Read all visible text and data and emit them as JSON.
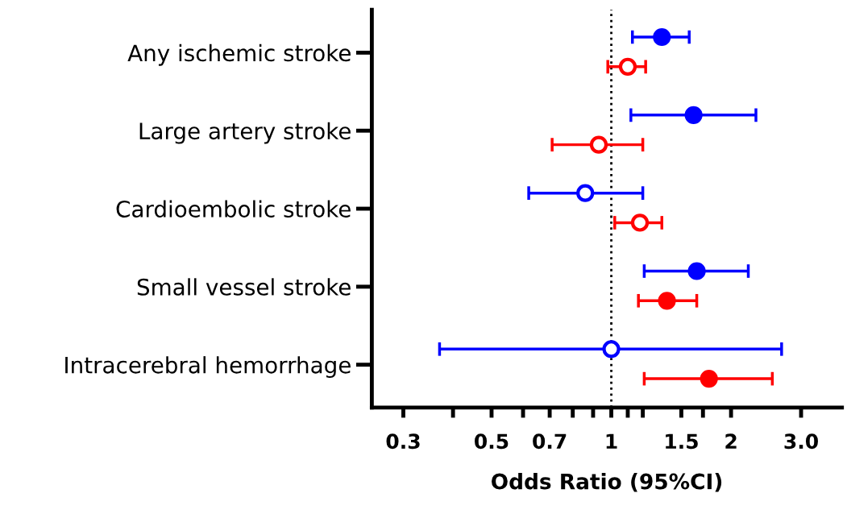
{
  "chart_data": {
    "type": "scatter",
    "orientation": "horizontal",
    "log": "x",
    "marker": "circle",
    "grid": false,
    "legend": false,
    "xlabel": "Odds Ratio (95%CI)",
    "categories": [
      "Any ischemic stroke",
      "Large artery stroke",
      "Cardioembolic stroke",
      "Small vessel stroke",
      "Intracerebral hemorrhage"
    ],
    "xlim": [
      0.25,
      3.8
    ],
    "xticks": [
      0.3,
      {
        "value": 0.4,
        "label": null
      },
      0.5,
      {
        "value": 0.6,
        "label": null
      },
      0.7,
      {
        "value": 0.8,
        "label": null
      },
      {
        "value": 0.9,
        "label": null
      },
      1,
      {
        "value": 1.1,
        "label": null
      },
      {
        "value": 1.2,
        "label": null
      },
      1.5,
      {
        "value": 1.7,
        "label": null
      },
      2,
      {
        "value": 3,
        "label": "3.0"
      }
    ],
    "ref_lines": [
      {
        "axis": "x",
        "value": 1,
        "label": null,
        "color": "#000000",
        "line_style": "dotted"
      }
    ],
    "series": [
      {
        "color": "#0000ff",
        "values": [
          1.34,
          1.61,
          0.86,
          1.64,
          1.0
        ],
        "colors": [
          "#0000ff",
          "#0000ff",
          "#ffffff",
          "#0000ff",
          "#ffffff"
        ],
        "errors": [
          [
            1.13,
            1.57
          ],
          [
            1.12,
            2.31
          ],
          [
            0.62,
            1.2
          ],
          [
            1.21,
            2.21
          ],
          [
            0.37,
            2.68
          ]
        ]
      },
      {
        "color": "#ff0000",
        "values": [
          1.1,
          0.93,
          1.18,
          1.38,
          1.76
        ],
        "colors": [
          "#ffffff",
          "#ffffff",
          "#ffffff",
          "#ff0000",
          "#ff0000"
        ],
        "errors": [
          [
            0.98,
            1.22
          ],
          [
            0.71,
            1.2
          ],
          [
            1.02,
            1.34
          ],
          [
            1.17,
            1.64
          ],
          [
            1.21,
            2.54
          ]
        ]
      }
    ]
  }
}
